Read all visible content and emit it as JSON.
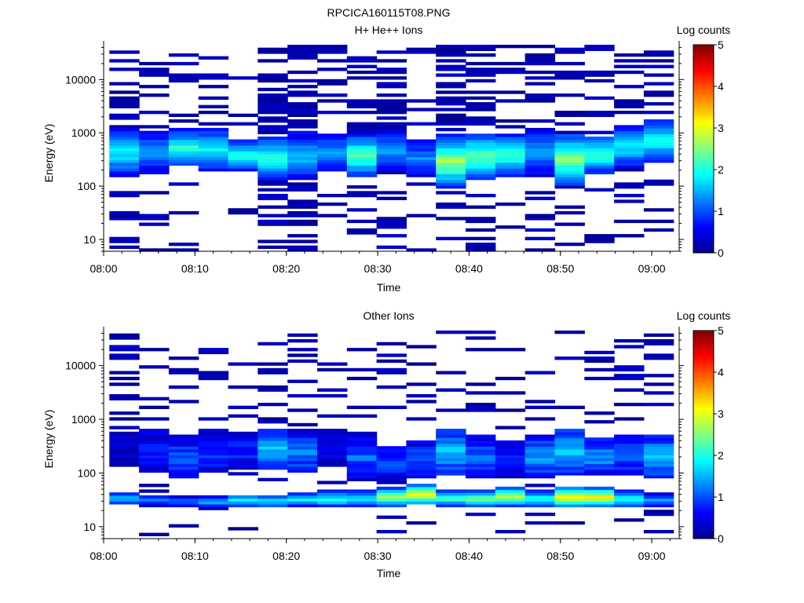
{
  "figure": {
    "title": "RPCICA160115T08.PNG"
  },
  "colormap": [
    "#00008f",
    "#0000ff",
    "#0080ff",
    "#00ffff",
    "#80ff80",
    "#ffff00",
    "#ff8000",
    "#ff0000",
    "#800000"
  ],
  "chart_data": [
    {
      "type": "heatmap",
      "title": "H+ He++ Ions",
      "xlabel": "Time",
      "ylabel": "Energy (eV)",
      "colorbar_label": "Log counts",
      "colorbar_ticks": [
        "0",
        "1",
        "2",
        "3",
        "4",
        "5"
      ],
      "color_range": [
        0,
        5
      ],
      "x_range": [
        "08:00",
        "09:03"
      ],
      "x_ticks": [
        "08:00",
        "08:10",
        "08:20",
        "08:30",
        "08:40",
        "08:50",
        "09:00"
      ],
      "y_scale": "log",
      "y_range": [
        6,
        45000
      ],
      "y_ticks": [
        {
          "value": 10,
          "label": "10"
        },
        {
          "value": 100,
          "label": "100"
        },
        {
          "value": 1000,
          "label": "1000"
        },
        {
          "value": 10000,
          "label": "10000"
        }
      ],
      "time_bins": [
        "08:02:15",
        "08:05:30",
        "08:08:45",
        "08:12:00",
        "08:15:15",
        "08:18:30",
        "08:21:45",
        "08:25:00",
        "08:28:15",
        "08:31:30",
        "08:34:45",
        "08:38:00",
        "08:41:15",
        "08:44:30",
        "08:47:45",
        "08:51:00",
        "08:54:15",
        "08:57:30",
        "09:00:45"
      ],
      "core_energy": [
        420,
        430,
        520,
        480,
        380,
        340,
        370,
        420,
        380,
        460,
        340,
        290,
        360,
        390,
        440,
        320,
        400,
        560,
        720
      ],
      "core_peak": [
        1.9,
        1.5,
        2.2,
        1.9,
        2.1,
        2.2,
        1.7,
        1.6,
        2.4,
        1.5,
        1.3,
        2.7,
        2.4,
        2.3,
        1.4,
        2.6,
        2.3,
        1.9,
        2.0
      ],
      "core_halfwidth_decades": [
        0.45,
        0.4,
        0.35,
        0.4,
        0.3,
        0.4,
        0.45,
        0.35,
        0.4,
        0.4,
        0.35,
        0.5,
        0.45,
        0.4,
        0.45,
        0.5,
        0.35,
        0.4,
        0.4
      ],
      "sparse_density": [
        0.35,
        0.3,
        0.25,
        0.25,
        0.2,
        0.55,
        0.6,
        0.3,
        0.45,
        0.45,
        0.2,
        0.55,
        0.55,
        0.3,
        0.6,
        0.35,
        0.25,
        0.45,
        0.4
      ]
    },
    {
      "type": "heatmap",
      "title": "Other Ions",
      "xlabel": "Time",
      "ylabel": "Energy (eV)",
      "colorbar_label": "Log counts",
      "colorbar_ticks": [
        "0",
        "1",
        "2",
        "3",
        "4",
        "5"
      ],
      "color_range": [
        0,
        5
      ],
      "x_range": [
        "08:00",
        "09:03"
      ],
      "x_ticks": [
        "08:00",
        "08:10",
        "08:20",
        "08:30",
        "08:40",
        "08:50",
        "09:00"
      ],
      "y_scale": "log",
      "y_range": [
        6,
        45000
      ],
      "y_ticks": [
        {
          "value": 10,
          "label": "10"
        },
        {
          "value": 100,
          "label": "100"
        },
        {
          "value": 1000,
          "label": "1000"
        },
        {
          "value": 10000,
          "label": "10000"
        }
      ],
      "time_bins": [
        "08:02:15",
        "08:05:30",
        "08:08:45",
        "08:12:00",
        "08:15:15",
        "08:18:30",
        "08:21:45",
        "08:25:00",
        "08:28:15",
        "08:31:30",
        "08:34:45",
        "08:38:00",
        "08:41:15",
        "08:44:30",
        "08:47:45",
        "08:51:00",
        "08:54:15",
        "08:57:30",
        "09:00:45"
      ],
      "core_energy": [
        33,
        31,
        30,
        29,
        31,
        30,
        32,
        33,
        33,
        36,
        40,
        34,
        33,
        37,
        33,
        36,
        36,
        33,
        32
      ],
      "core_peak": [
        1.7,
        1.3,
        1.1,
        1.5,
        1.9,
        1.8,
        1.8,
        2.1,
        2.0,
        2.8,
        3.2,
        2.4,
        2.6,
        2.9,
        2.1,
        3.3,
        3.3,
        2.0,
        1.4
      ],
      "core_halfwidth_decades": [
        0.12,
        0.1,
        0.1,
        0.1,
        0.12,
        0.12,
        0.12,
        0.15,
        0.15,
        0.18,
        0.2,
        0.15,
        0.15,
        0.18,
        0.15,
        0.18,
        0.18,
        0.15,
        0.12
      ],
      "upper_energy": [
        300,
        250,
        200,
        250,
        250,
        280,
        250,
        300,
        200,
        150,
        180,
        250,
        200,
        180,
        200,
        250,
        200,
        220,
        200
      ],
      "upper_peak": [
        0.4,
        0.7,
        1.1,
        0.9,
        0.8,
        1.6,
        1.3,
        0.6,
        1.1,
        0.9,
        1.1,
        1.6,
        1.2,
        0.9,
        1.4,
        1.6,
        1.4,
        1.2,
        1.6
      ],
      "upper_halfwidth_decades": [
        0.4,
        0.4,
        0.4,
        0.4,
        0.35,
        0.4,
        0.4,
        0.35,
        0.4,
        0.35,
        0.35,
        0.45,
        0.4,
        0.35,
        0.4,
        0.45,
        0.35,
        0.4,
        0.4
      ],
      "sparse_density": [
        0.25,
        0.2,
        0.15,
        0.15,
        0.15,
        0.25,
        0.2,
        0.2,
        0.15,
        0.3,
        0.15,
        0.15,
        0.2,
        0.15,
        0.2,
        0.3,
        0.2,
        0.2,
        0.25
      ]
    }
  ]
}
